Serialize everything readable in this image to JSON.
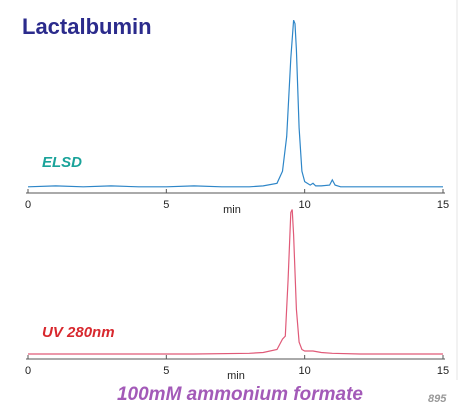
{
  "title": "Lactalbumin",
  "caption": "100mM ammonium formate",
  "code": "895",
  "chart_data": [
    {
      "type": "line",
      "label": "ELSD",
      "label_color": "#1aa39a",
      "color": "#2e86c8",
      "x": [
        0,
        1,
        2,
        3,
        4,
        5,
        6,
        7,
        8,
        8.5,
        9,
        9.2,
        9.35,
        9.5,
        9.6,
        9.65,
        9.7,
        9.8,
        9.9,
        10.0,
        10.2,
        10.3,
        10.4,
        10.6,
        10.9,
        11.0,
        11.1,
        11.3,
        12,
        13,
        14,
        15
      ],
      "values": [
        1,
        1.5,
        1,
        1.5,
        1,
        1,
        1.5,
        1,
        1,
        1.5,
        3,
        10,
        30,
        75,
        97,
        95,
        80,
        35,
        10,
        4,
        2,
        3,
        1.5,
        1.5,
        2,
        5,
        2,
        1,
        1,
        1,
        1,
        1
      ],
      "xlim": [
        0,
        15
      ],
      "xticks": [
        0,
        5,
        10,
        15
      ],
      "xlabel": "min",
      "ylim": [
        -2,
        100
      ]
    },
    {
      "type": "line",
      "label": "UV 280nm",
      "label_color": "#d8282e",
      "color": "#e05a78",
      "x": [
        0,
        2,
        4,
        6,
        8,
        8.5,
        9,
        9.2,
        9.3,
        9.4,
        9.5,
        9.55,
        9.6,
        9.7,
        9.8,
        9.9,
        10,
        10.3,
        10.6,
        11,
        12,
        13,
        15
      ],
      "values": [
        0,
        0,
        0,
        0,
        0.5,
        1,
        3,
        10,
        12,
        50,
        95,
        97,
        80,
        30,
        8,
        3,
        2,
        2,
        1,
        0.5,
        0,
        0,
        0
      ],
      "xlim": [
        0,
        15
      ],
      "xticks": [
        0,
        5,
        10,
        15
      ],
      "xlabel": "min",
      "ylim": [
        -2,
        100
      ]
    }
  ]
}
